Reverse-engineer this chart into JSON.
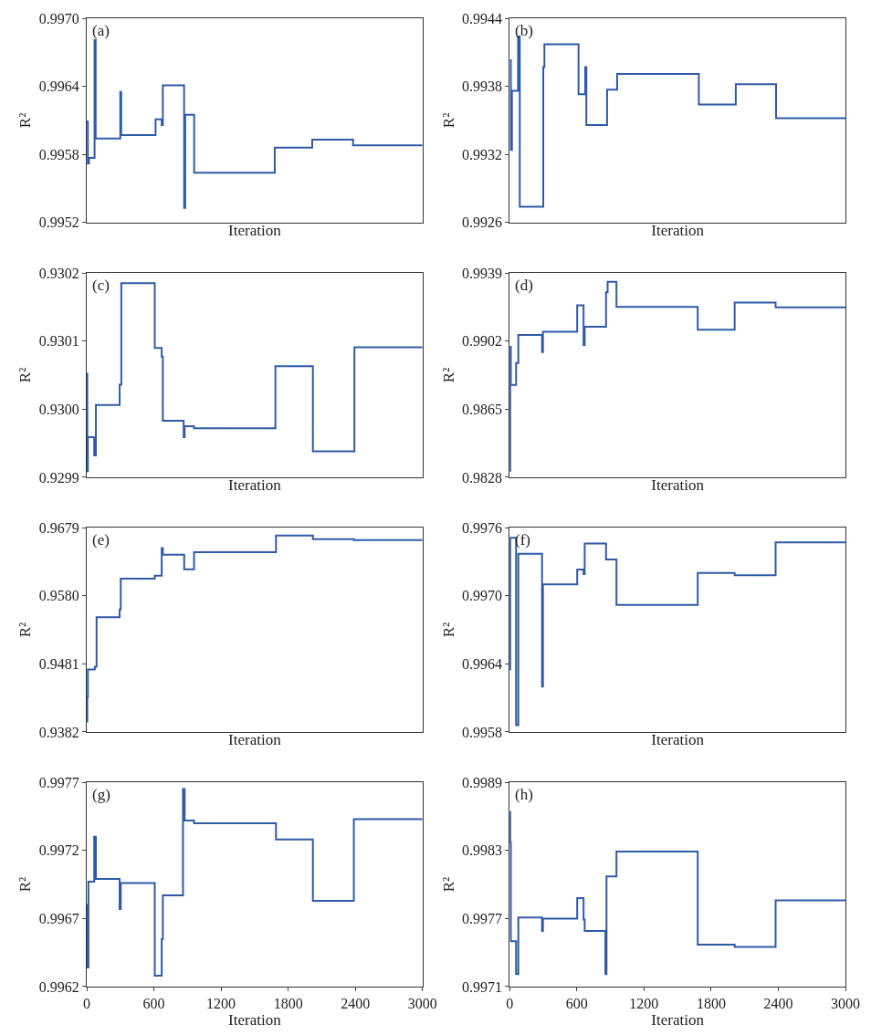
{
  "chart_data": [
    {
      "type": "step",
      "title": "(a)",
      "xlabel": "Iteration",
      "ylabel": "R²",
      "xlim": [
        0,
        3000
      ],
      "tick_labels": "y",
      "ylim": [
        0.9952,
        0.997
      ],
      "yticks": [
        0.9952,
        0.9958,
        0.9964,
        {
          "value": 0.997,
          "label": "0.9970"
        }
      ],
      "series": [
        {
          "color": "#2f5aa8",
          "x": [
            0,
            10,
            20,
            70,
            80,
            300,
            308,
            615,
            670,
            680,
            870,
            880,
            960,
            1680,
            2015,
            2380,
            3000
          ],
          "values": [
            0.99609,
            0.99572,
            0.99577,
            0.99681,
            0.99594,
            0.99635,
            0.99597,
            0.99611,
            0.99606,
            0.99641,
            0.99533,
            0.99615,
            0.99564,
            0.99586,
            0.99593,
            0.99588,
            0.99588
          ]
        }
      ]
    },
    {
      "type": "step",
      "title": "(b)",
      "xlabel": "Iteration",
      "ylabel": "R²",
      "xlim": [
        0,
        3000
      ],
      "tick_labels": "y",
      "ylim": [
        0.9926,
        0.9944
      ],
      "yticks": [
        0.9926,
        0.9932,
        0.9938,
        0.9944
      ],
      "series": [
        {
          "color": "#2f5aa8",
          "x": [
            0,
            10,
            20,
            75,
            90,
            300,
            310,
            615,
            675,
            685,
            870,
            960,
            1690,
            2020,
            2380,
            3000
          ],
          "values": [
            0.99403,
            0.99324,
            0.99376,
            0.99424,
            0.99274,
            0.99397,
            0.99417,
            0.99373,
            0.99397,
            0.99346,
            0.99377,
            0.99391,
            0.99364,
            0.99382,
            0.99352,
            0.99352
          ]
        }
      ]
    },
    {
      "type": "step",
      "title": "(c)",
      "xlabel": "Iteration",
      "ylabel": "R²",
      "xlim": [
        0,
        3000
      ],
      "tick_labels": "y",
      "ylim": [
        0.9299,
        0.9302
      ],
      "yticks": [
        0.9299,
        {
          "value": 0.93,
          "label": "0.9300"
        },
        0.9301,
        0.9302
      ],
      "series": [
        {
          "color": "#2f5aa8",
          "x": [
            0,
            5,
            10,
            67,
            82,
            294,
            309,
            608,
            670,
            680,
            866,
            875,
            959,
            1686,
            2021,
            2392,
            3000
          ],
          "values": [
            0.930052,
            0.929909,
            0.929959,
            0.929932,
            0.930006,
            0.930036,
            0.930185,
            0.93009,
            0.930077,
            0.929983,
            0.929959,
            0.929975,
            0.929972,
            0.930063,
            0.929938,
            0.930091,
            0.930091
          ]
        }
      ]
    },
    {
      "type": "step",
      "title": "(d)",
      "xlabel": "Iteration",
      "ylabel": "R²",
      "xlim": [
        0,
        3000
      ],
      "tick_labels": "y",
      "ylim": [
        0.9828,
        0.9939
      ],
      "yticks": [
        0.9828,
        0.9865,
        0.9902,
        0.9939
      ],
      "series": [
        {
          "color": "#2f5aa8",
          "x": [
            0,
            5,
            10,
            57,
            77,
            289,
            297,
            603,
            660,
            670,
            861,
            875,
            954,
            1680,
            2010,
            2376,
            3000
          ],
          "values": [
            0.98314,
            0.98988,
            0.98781,
            0.989,
            0.99053,
            0.9896,
            0.9907,
            0.99214,
            0.98999,
            0.99098,
            0.99285,
            0.99342,
            0.99206,
            0.99081,
            0.99229,
            0.99203,
            0.99203
          ]
        }
      ]
    },
    {
      "type": "step",
      "title": "(e)",
      "xlabel": "Iteration",
      "ylabel": "R²",
      "xlim": [
        0,
        3000
      ],
      "tick_labels": "y",
      "ylim": [
        0.9382,
        0.9679
      ],
      "yticks": [
        0.9382,
        0.9481,
        {
          "value": 0.958,
          "label": "0.9580"
        },
        0.9679
      ],
      "series": [
        {
          "color": "#2f5aa8",
          "x": [
            0,
            5,
            10,
            72,
            88,
            294,
            304,
            608,
            670,
            680,
            871,
            959,
            1691,
            2021,
            2387,
            3000
          ],
          "values": [
            0.93972,
            0.94328,
            0.94729,
            0.94767,
            0.95487,
            0.956,
            0.96048,
            0.96093,
            0.96494,
            0.96396,
            0.96184,
            0.96434,
            0.96676,
            0.96623,
            0.96608,
            0.96608
          ]
        }
      ]
    },
    {
      "type": "step",
      "title": "(f)",
      "xlabel": "Iteration",
      "ylabel": "R²",
      "xlim": [
        0,
        3000
      ],
      "tick_labels": "y",
      "ylim": [
        0.9958,
        0.9976
      ],
      "yticks": [
        0.9958,
        0.9964,
        {
          "value": 0.997,
          "label": "0.9970"
        },
        0.9976
      ],
      "series": [
        {
          "color": "#2f5aa8",
          "x": [
            0,
            5,
            57,
            77,
            289,
            297,
            603,
            660,
            670,
            861,
            954,
            1680,
            2010,
            2376,
            3000
          ],
          "values": [
            0.99635,
            0.99751,
            0.99586,
            0.99737,
            0.9962,
            0.9971,
            0.99723,
            0.99719,
            0.99746,
            0.99732,
            0.99692,
            0.9972,
            0.99718,
            0.99747,
            0.99747
          ]
        }
      ]
    },
    {
      "type": "step",
      "title": "(g)",
      "xlabel": "Iteration",
      "ylabel": "R²",
      "xlim": [
        0,
        3000
      ],
      "xticks": [
        0,
        600,
        1200,
        1800,
        2400,
        3000
      ],
      "ylim": [
        0.9962,
        0.9977
      ],
      "yticks": [
        0.9962,
        0.9967,
        0.9972,
        0.9977
      ],
      "series": [
        {
          "color": "#2f5aa8",
          "x": [
            0,
            5,
            15,
            67,
            82,
            294,
            304,
            608,
            670,
            680,
            860,
            875,
            959,
            1691,
            2021,
            2387,
            3000
          ],
          "values": [
            0.9968,
            0.99634,
            0.99697,
            0.9973,
            0.99699,
            0.99677,
            0.99696,
            0.99628,
            0.99655,
            0.99687,
            0.99765,
            0.99742,
            0.9974,
            0.99728,
            0.99683,
            0.99743,
            0.99743
          ]
        }
      ]
    },
    {
      "type": "step",
      "title": "(h)",
      "xlabel": "Iteration",
      "ylabel": "R²",
      "xlim": [
        0,
        3000
      ],
      "xticks": [
        0,
        600,
        1200,
        1800,
        2400,
        3000
      ],
      "ylim": [
        0.9971,
        0.9989
      ],
      "yticks": [
        0.9971,
        0.9977,
        0.9983,
        0.9989
      ],
      "series": [
        {
          "color": "#2f5aa8",
          "x": [
            0,
            5,
            10,
            57,
            77,
            289,
            297,
            603,
            660,
            670,
            855,
            865,
            954,
            1680,
            2010,
            2376,
            3000
          ],
          "values": [
            0.99864,
            0.99837,
            0.9975,
            0.99721,
            0.99771,
            0.99759,
            0.9977,
            0.99788,
            0.99769,
            0.99759,
            0.99721,
            0.99807,
            0.99829,
            0.99747,
            0.99745,
            0.99786,
            0.99786
          ]
        }
      ]
    }
  ]
}
